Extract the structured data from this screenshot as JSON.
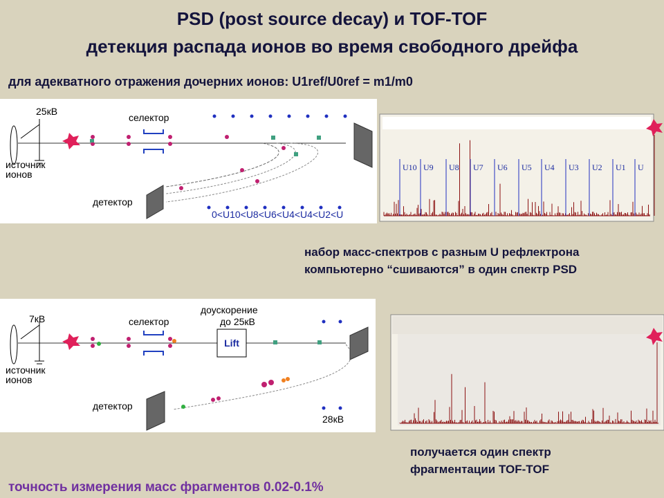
{
  "header": {
    "title": "PSD (post source decay) и TOF-TOF",
    "subtitle": "детекция распада ионов во время свободного дрейфа"
  },
  "condition": "для адекватного отражения дочерних ионов:  U1ref/U0ref = m1/m0",
  "diagram1": {
    "voltage": "25кВ",
    "selector": "селектор",
    "source": [
      "источник",
      "ионов"
    ],
    "detector": "детектор",
    "inequality": "0<U10<U8<U6<U4<U4<U2<U"
  },
  "spectrum1": {
    "labels": [
      "U10",
      "U9",
      "U8",
      "U7",
      "U6",
      "U5",
      "U4",
      "U3",
      "U2",
      "U1",
      "U"
    ]
  },
  "note1": [
    "набор масс-спектров с разным U рефлектрона",
    "компьютерно “сшиваются” в один спектр PSD"
  ],
  "diagram2": {
    "voltage": "7кВ",
    "selector": "селектор",
    "acceleration": [
      "доускорение",
      "до 25кВ"
    ],
    "lift": "Lift",
    "source": [
      "источник",
      "ионов"
    ],
    "detector": "детектор",
    "reflector_voltage": "28кВ"
  },
  "note2": [
    "получается один спектр",
    "фрагментации TOF-TOF"
  ],
  "footer": "точность измерения масс фрагментов 0.02-0.1%"
}
